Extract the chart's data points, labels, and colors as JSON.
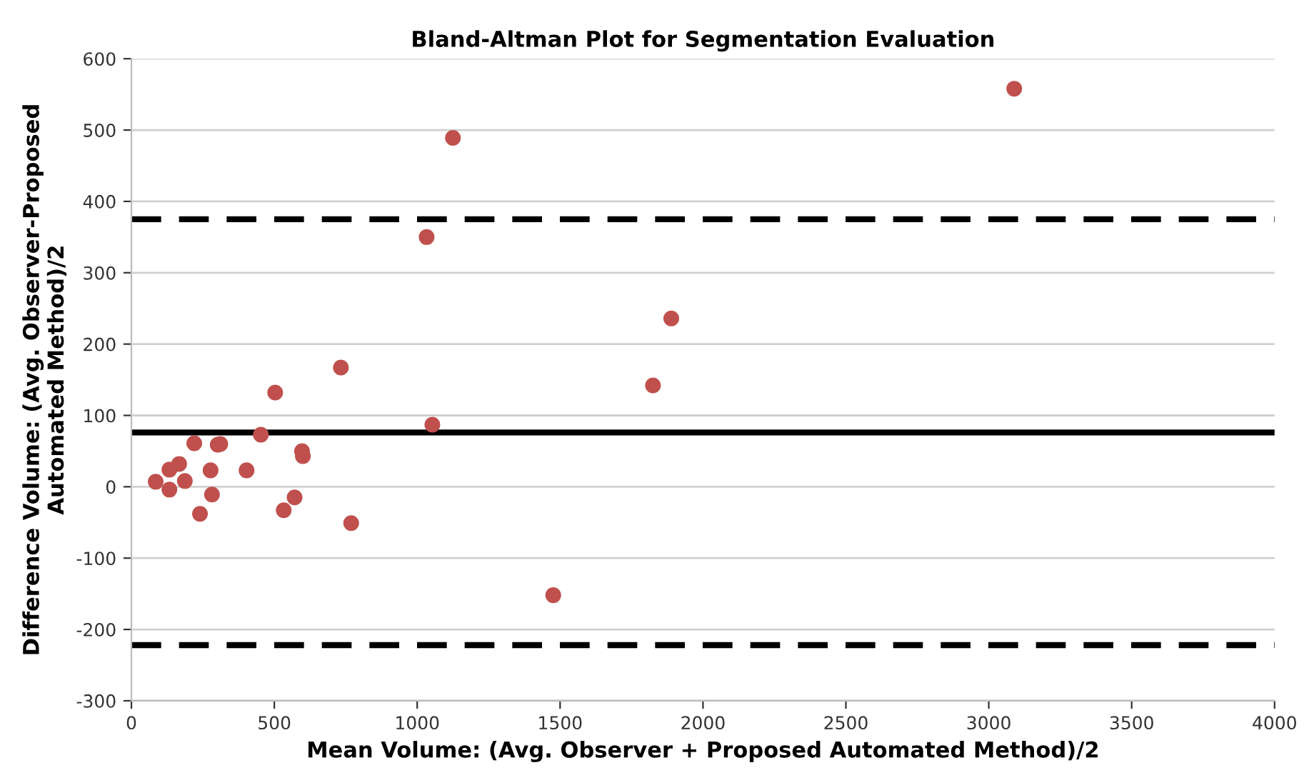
{
  "chart_data": {
    "type": "scatter",
    "title": "Bland-Altman Plot for Segmentation Evaluation",
    "xlabel": "Mean Volume: (Avg. Observer + Proposed Automated Method)/2",
    "ylabel": "Difference Volume: (Avg. Observer-Proposed\nAutomated Method)/2",
    "series": [
      {
        "color": "#c0504d",
        "x": [
          85,
          133,
          133,
          167,
          187,
          220,
          240,
          277,
          282,
          302,
          311,
          403,
          453,
          503,
          533,
          571,
          597,
          600,
          733,
          769,
          1033,
          1053,
          1125,
          1476,
          1825,
          1889,
          3089
        ],
        "values": [
          7,
          -4,
          24,
          32,
          8,
          61,
          -38,
          23,
          -11,
          59,
          60,
          23,
          73,
          132,
          -33,
          -15,
          50,
          43,
          167,
          -51,
          350,
          87,
          489,
          -152,
          142,
          236,
          558
        ]
      }
    ],
    "ref_lines": [
      {
        "axis": "y",
        "value": 76,
        "color": "#000000",
        "line_style": "solid"
      },
      {
        "axis": "y",
        "value": 375,
        "color": "#000000",
        "line_style": "dashed"
      },
      {
        "axis": "y",
        "value": -222,
        "color": "#000000",
        "line_style": "dashed"
      }
    ],
    "xlim": [
      0,
      4000
    ],
    "xticks": [
      0,
      500,
      1000,
      1500,
      2000,
      2500,
      3000,
      3500,
      4000
    ],
    "ylim": [
      -300,
      600
    ],
    "yticks": [
      -300,
      -200,
      -100,
      0,
      100,
      200,
      300,
      400,
      500,
      600
    ],
    "grid": "y",
    "marker": "circle",
    "legend": false
  }
}
